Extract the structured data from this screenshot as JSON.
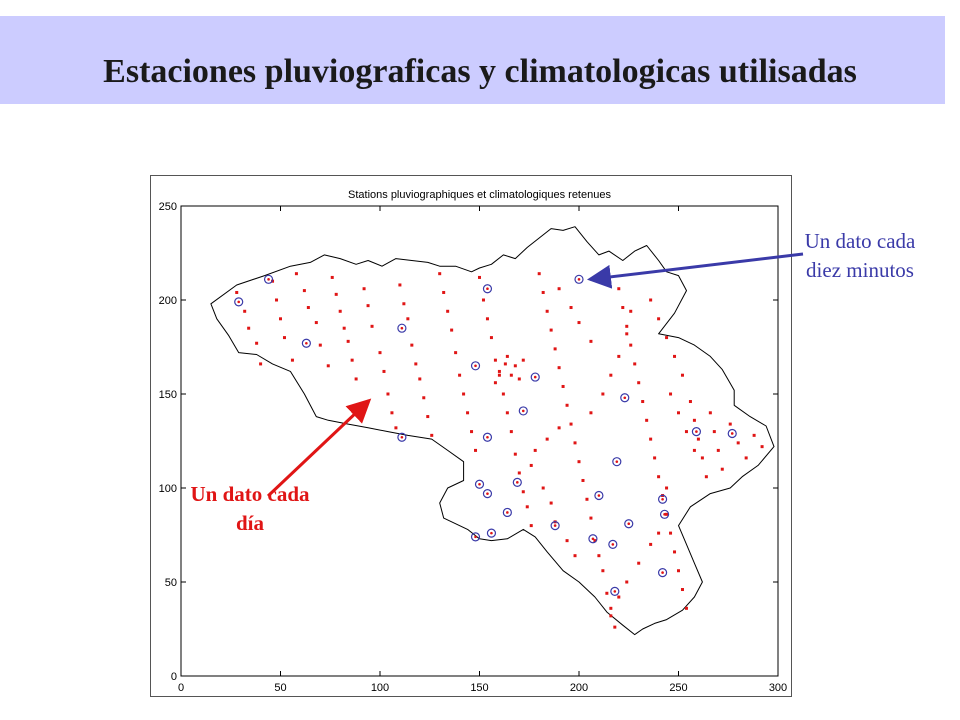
{
  "slide": {
    "title": "Estaciones pluviograficas y climatologicas utilisadas",
    "colors": {
      "banner": "#ccccff",
      "title": "#1a1a1a",
      "daily": "#e01515",
      "ten_min": "#3a3aa8"
    }
  },
  "chart_data": {
    "type": "scatter",
    "title": "Stations pluviographiques et climatologiques retenues",
    "xlabel": "",
    "ylabel": "",
    "xlim": [
      0,
      300
    ],
    "ylim": [
      0,
      250
    ],
    "xticks": [
      0,
      50,
      100,
      150,
      200,
      250,
      300
    ],
    "yticks": [
      0,
      50,
      100,
      150,
      200,
      250
    ],
    "grid": false,
    "map_outline": "Belgium",
    "outline": [
      [
        15,
        198
      ],
      [
        28,
        208
      ],
      [
        42,
        213
      ],
      [
        55,
        218
      ],
      [
        65,
        220
      ],
      [
        72,
        224
      ],
      [
        80,
        222
      ],
      [
        88,
        219
      ],
      [
        94,
        221
      ],
      [
        101,
        218
      ],
      [
        108,
        222
      ],
      [
        116,
        221
      ],
      [
        124,
        220
      ],
      [
        130,
        218
      ],
      [
        138,
        218
      ],
      [
        146,
        215
      ],
      [
        150,
        217
      ],
      [
        156,
        219
      ],
      [
        162,
        224
      ],
      [
        168,
        222
      ],
      [
        174,
        228
      ],
      [
        180,
        233
      ],
      [
        186,
        238
      ],
      [
        192,
        237
      ],
      [
        198,
        239
      ],
      [
        204,
        231
      ],
      [
        210,
        224
      ],
      [
        215,
        226
      ],
      [
        222,
        221
      ],
      [
        228,
        226
      ],
      [
        234,
        229
      ],
      [
        240,
        221
      ],
      [
        244,
        215
      ],
      [
        250,
        213
      ],
      [
        254,
        205
      ],
      [
        248,
        193
      ],
      [
        240,
        182
      ],
      [
        250,
        180
      ],
      [
        258,
        176
      ],
      [
        266,
        170
      ],
      [
        272,
        163
      ],
      [
        278,
        152
      ],
      [
        278,
        144
      ],
      [
        286,
        138
      ],
      [
        294,
        133
      ],
      [
        298,
        122
      ],
      [
        290,
        112
      ],
      [
        282,
        106
      ],
      [
        276,
        100
      ],
      [
        266,
        97
      ],
      [
        256,
        90
      ],
      [
        250,
        80
      ],
      [
        254,
        70
      ],
      [
        258,
        60
      ],
      [
        262,
        50
      ],
      [
        258,
        42
      ],
      [
        252,
        35
      ],
      [
        244,
        30
      ],
      [
        238,
        28
      ],
      [
        232,
        25
      ],
      [
        228,
        22
      ],
      [
        222,
        27
      ],
      [
        214,
        34
      ],
      [
        208,
        42
      ],
      [
        200,
        50
      ],
      [
        192,
        56
      ],
      [
        184,
        66
      ],
      [
        178,
        74
      ],
      [
        172,
        78
      ],
      [
        164,
        73
      ],
      [
        156,
        72
      ],
      [
        150,
        73
      ],
      [
        144,
        78
      ],
      [
        132,
        84
      ],
      [
        130,
        92
      ],
      [
        134,
        100
      ],
      [
        142,
        104
      ],
      [
        142,
        114
      ],
      [
        134,
        120
      ],
      [
        126,
        126
      ],
      [
        114,
        128
      ],
      [
        104,
        130
      ],
      [
        94,
        132
      ],
      [
        84,
        134
      ],
      [
        74,
        136
      ],
      [
        68,
        138
      ],
      [
        62,
        150
      ],
      [
        55,
        162
      ],
      [
        46,
        166
      ],
      [
        38,
        171
      ],
      [
        29,
        172
      ],
      [
        24,
        181
      ],
      [
        18,
        190
      ],
      [
        15,
        198
      ]
    ],
    "series": [
      {
        "marker": "red-dot",
        "points": [
          [
            28,
            204
          ],
          [
            32,
            194
          ],
          [
            34,
            185
          ],
          [
            38,
            177
          ],
          [
            40,
            166
          ],
          [
            46,
            210
          ],
          [
            48,
            200
          ],
          [
            50,
            190
          ],
          [
            52,
            180
          ],
          [
            56,
            168
          ],
          [
            58,
            214
          ],
          [
            62,
            205
          ],
          [
            64,
            196
          ],
          [
            68,
            188
          ],
          [
            70,
            176
          ],
          [
            74,
            165
          ],
          [
            76,
            212
          ],
          [
            78,
            203
          ],
          [
            80,
            194
          ],
          [
            82,
            185
          ],
          [
            84,
            178
          ],
          [
            86,
            168
          ],
          [
            88,
            158
          ],
          [
            92,
            206
          ],
          [
            94,
            197
          ],
          [
            96,
            186
          ],
          [
            100,
            172
          ],
          [
            102,
            162
          ],
          [
            104,
            150
          ],
          [
            106,
            140
          ],
          [
            108,
            132
          ],
          [
            110,
            208
          ],
          [
            112,
            198
          ],
          [
            114,
            190
          ],
          [
            116,
            176
          ],
          [
            118,
            166
          ],
          [
            120,
            158
          ],
          [
            122,
            148
          ],
          [
            124,
            138
          ],
          [
            126,
            128
          ],
          [
            130,
            214
          ],
          [
            132,
            204
          ],
          [
            134,
            194
          ],
          [
            136,
            184
          ],
          [
            138,
            172
          ],
          [
            140,
            160
          ],
          [
            142,
            150
          ],
          [
            144,
            140
          ],
          [
            146,
            130
          ],
          [
            148,
            120
          ],
          [
            150,
            212
          ],
          [
            152,
            200
          ],
          [
            154,
            190
          ],
          [
            156,
            180
          ],
          [
            158,
            168
          ],
          [
            160,
            160
          ],
          [
            162,
            150
          ],
          [
            164,
            140
          ],
          [
            166,
            130
          ],
          [
            168,
            118
          ],
          [
            170,
            108
          ],
          [
            172,
            98
          ],
          [
            174,
            90
          ],
          [
            176,
            80
          ],
          [
            180,
            214
          ],
          [
            182,
            204
          ],
          [
            184,
            194
          ],
          [
            186,
            184
          ],
          [
            188,
            174
          ],
          [
            190,
            164
          ],
          [
            192,
            154
          ],
          [
            194,
            144
          ],
          [
            196,
            134
          ],
          [
            198,
            124
          ],
          [
            200,
            114
          ],
          [
            202,
            104
          ],
          [
            204,
            94
          ],
          [
            206,
            84
          ],
          [
            208,
            72
          ],
          [
            210,
            64
          ],
          [
            212,
            56
          ],
          [
            214,
            44
          ],
          [
            216,
            36
          ],
          [
            218,
            26
          ],
          [
            220,
            206
          ],
          [
            222,
            196
          ],
          [
            224,
            186
          ],
          [
            226,
            176
          ],
          [
            228,
            166
          ],
          [
            230,
            156
          ],
          [
            232,
            146
          ],
          [
            234,
            136
          ],
          [
            236,
            126
          ],
          [
            238,
            116
          ],
          [
            240,
            106
          ],
          [
            242,
            96
          ],
          [
            244,
            86
          ],
          [
            246,
            76
          ],
          [
            248,
            66
          ],
          [
            250,
            56
          ],
          [
            252,
            46
          ],
          [
            254,
            36
          ],
          [
            256,
            146
          ],
          [
            258,
            136
          ],
          [
            260,
            126
          ],
          [
            262,
            116
          ],
          [
            264,
            106
          ],
          [
            266,
            140
          ],
          [
            268,
            130
          ],
          [
            270,
            120
          ],
          [
            272,
            110
          ],
          [
            276,
            134
          ],
          [
            280,
            124
          ],
          [
            284,
            116
          ],
          [
            288,
            128
          ],
          [
            292,
            122
          ],
          [
            160,
            162
          ],
          [
            163,
            166
          ],
          [
            166,
            160
          ],
          [
            168,
            165
          ],
          [
            170,
            158
          ],
          [
            158,
            156
          ],
          [
            164,
            170
          ],
          [
            172,
            168
          ],
          [
            236,
            200
          ],
          [
            240,
            190
          ],
          [
            244,
            180
          ],
          [
            248,
            170
          ],
          [
            252,
            160
          ],
          [
            246,
            150
          ],
          [
            250,
            140
          ],
          [
            254,
            130
          ],
          [
            258,
            120
          ],
          [
            244,
            100
          ],
          [
            240,
            76
          ],
          [
            236,
            70
          ],
          [
            230,
            60
          ],
          [
            224,
            50
          ],
          [
            220,
            42
          ],
          [
            216,
            32
          ],
          [
            198,
            64
          ],
          [
            194,
            72
          ],
          [
            188,
            82
          ],
          [
            186,
            92
          ],
          [
            182,
            100
          ],
          [
            176,
            112
          ],
          [
            178,
            120
          ],
          [
            184,
            126
          ],
          [
            190,
            132
          ],
          [
            206,
            140
          ],
          [
            212,
            150
          ],
          [
            216,
            160
          ],
          [
            220,
            170
          ],
          [
            224,
            182
          ],
          [
            226,
            194
          ],
          [
            206,
            178
          ],
          [
            200,
            188
          ],
          [
            196,
            196
          ],
          [
            190,
            206
          ]
        ]
      },
      {
        "marker": "blue-circle",
        "points": [
          [
            29,
            199
          ],
          [
            44,
            211
          ],
          [
            63,
            177
          ],
          [
            111,
            185
          ],
          [
            154,
            206
          ],
          [
            200,
            211
          ],
          [
            148,
            165
          ],
          [
            178,
            159
          ],
          [
            223,
            148
          ],
          [
            172,
            141
          ],
          [
            111,
            127
          ],
          [
            154,
            127
          ],
          [
            259,
            130
          ],
          [
            277,
            129
          ],
          [
            219,
            114
          ],
          [
            150,
            102
          ],
          [
            154,
            97
          ],
          [
            169,
            103
          ],
          [
            210,
            96
          ],
          [
            242,
            94
          ],
          [
            243,
            86
          ],
          [
            164,
            87
          ],
          [
            188,
            80
          ],
          [
            225,
            81
          ],
          [
            148,
            74
          ],
          [
            156,
            76
          ],
          [
            207,
            73
          ],
          [
            217,
            70
          ],
          [
            242,
            55
          ],
          [
            218,
            45
          ]
        ]
      }
    ],
    "annotations": [
      {
        "text": "Un dato cada diez minutos",
        "color": "#3a3aa8",
        "target": [
          205,
          211
        ]
      },
      {
        "text": "Un dato cada día",
        "color": "#e01515",
        "target": [
          95,
          146
        ]
      }
    ]
  }
}
